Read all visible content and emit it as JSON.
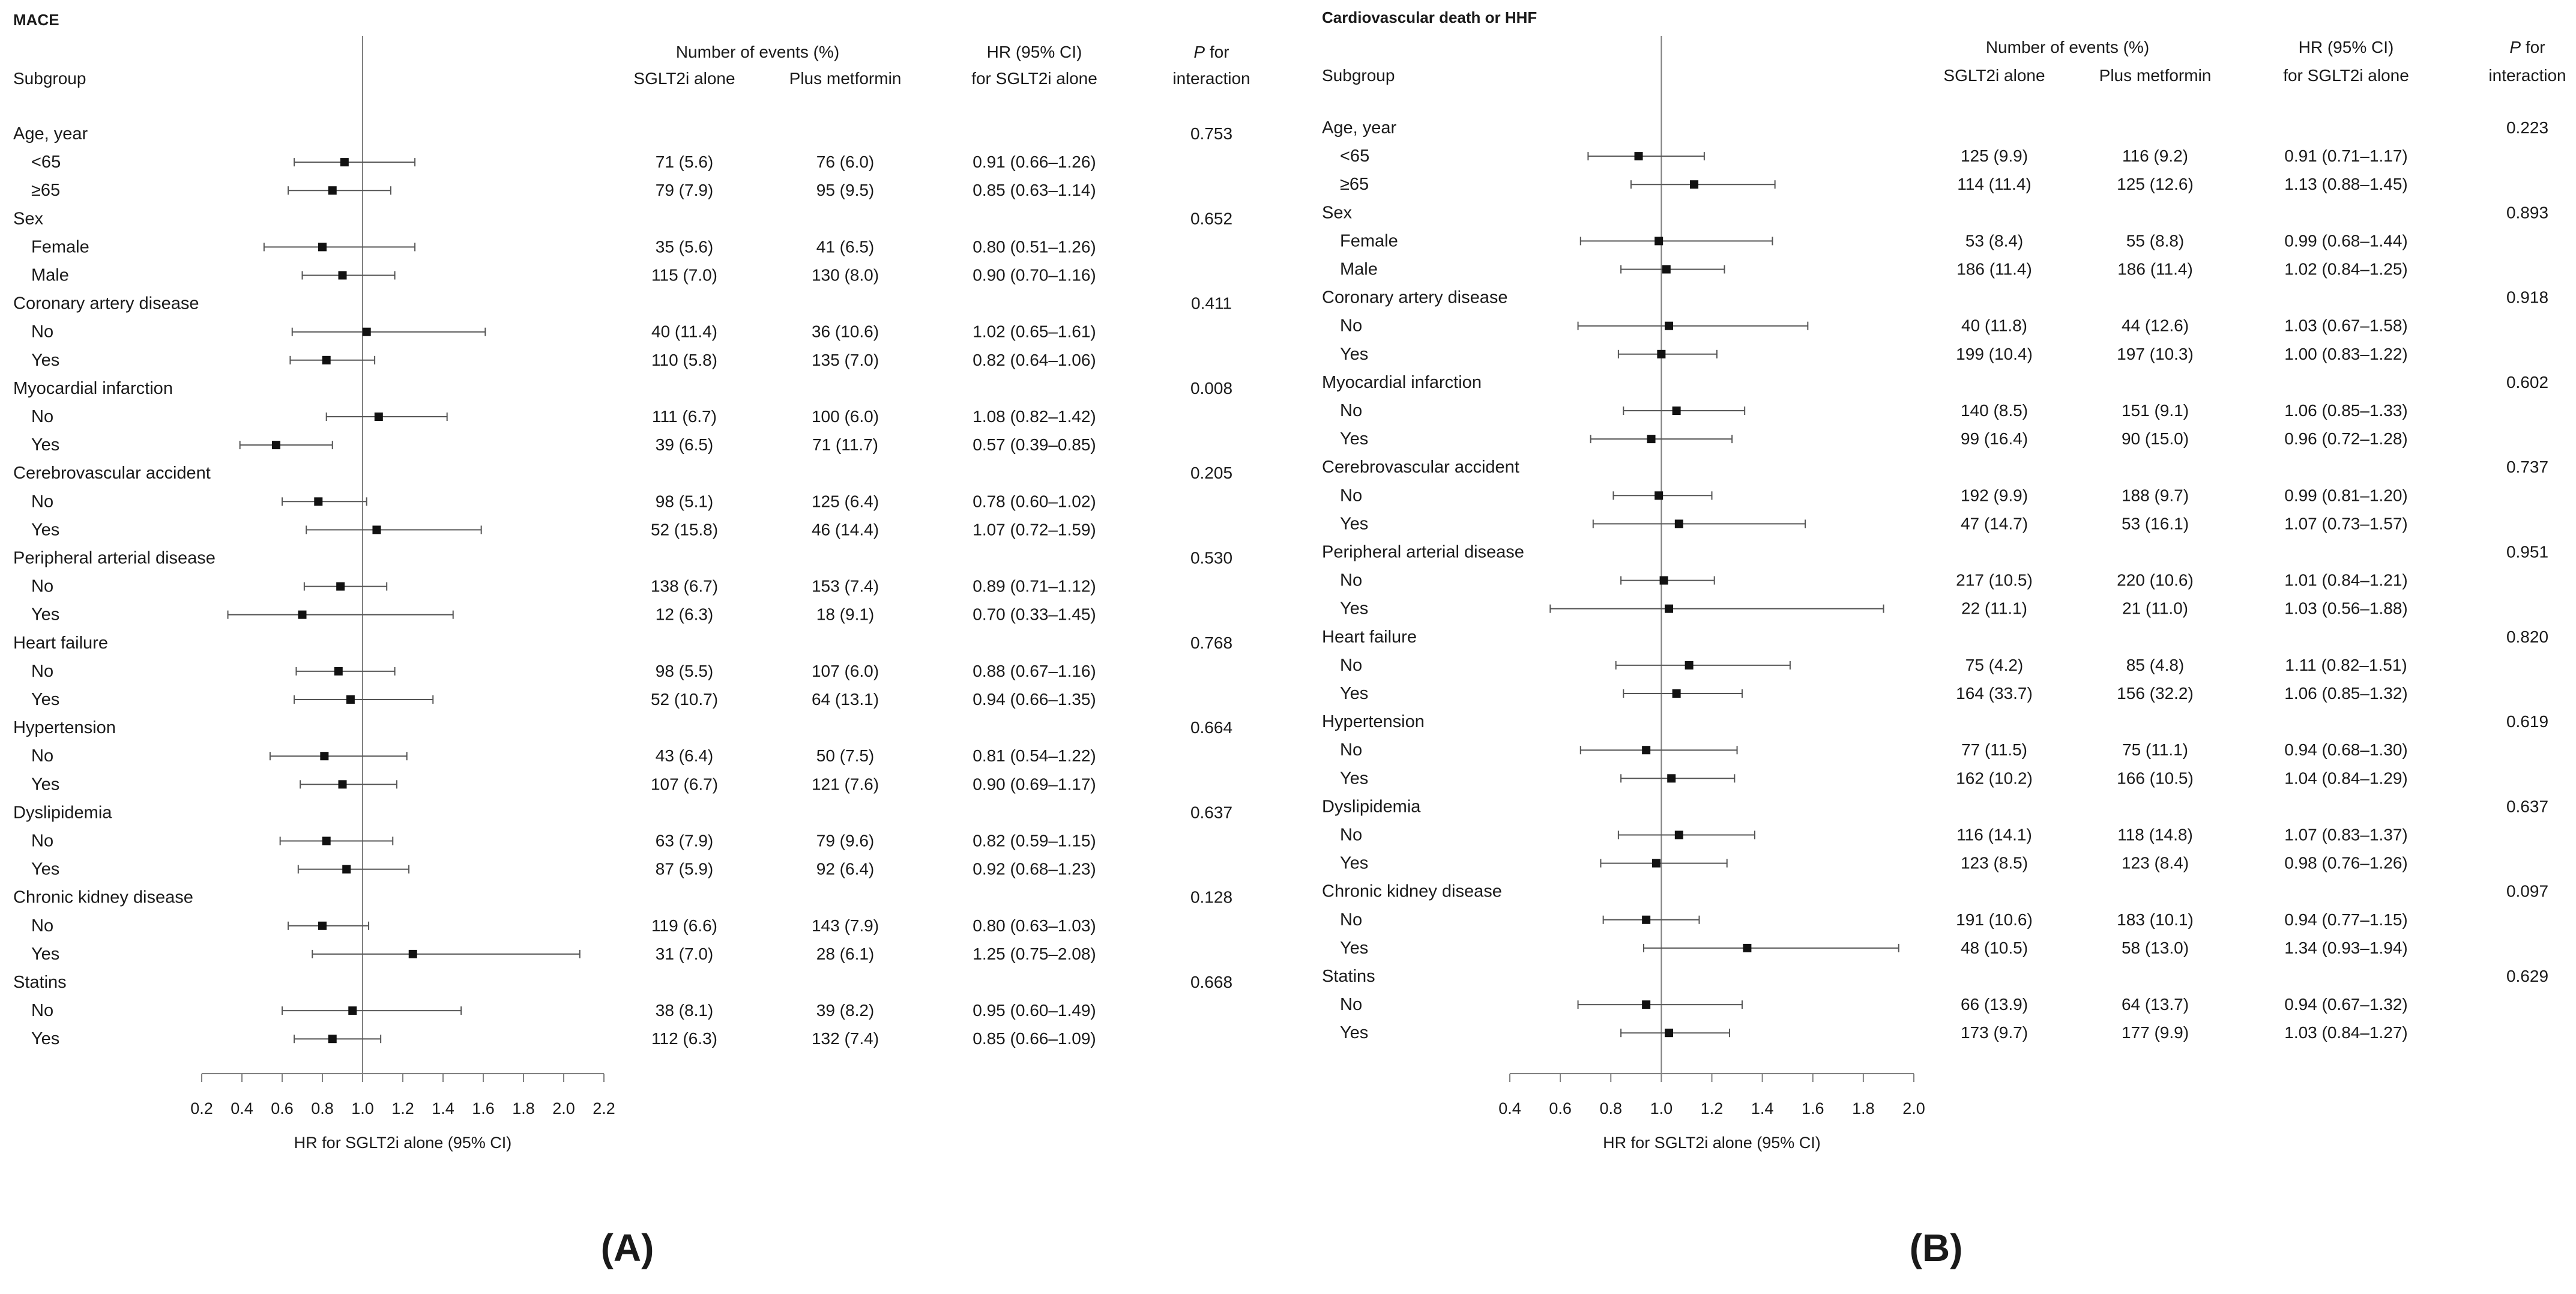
{
  "chart_data": [
    {
      "type": "forest",
      "panel_label": "(A)",
      "title": "MACE",
      "header": {
        "subgroup": "Subgroup",
        "events_group": "Number of events (%)",
        "events_col1": "SGLT2i alone",
        "events_col2": "Plus metformin",
        "hr_line1": "HR (95% CI)",
        "hr_line2": "for SGLT2i alone",
        "p_line1_italic": "P",
        "p_line1_rest": " for",
        "p_line2": "interaction"
      },
      "xlabel": "HR for SGLT2i alone (95% CI)",
      "xlim": [
        0.2,
        2.2
      ],
      "xticks": [
        "0.2",
        "0.4",
        "0.6",
        "0.8",
        "1.0",
        "1.2",
        "1.4",
        "1.6",
        "1.8",
        "2.0",
        "2.2"
      ],
      "reference_line": 1.0,
      "rows": [
        {
          "label": "Age, year",
          "p": "0.753"
        },
        {
          "label": "<65",
          "sglt2": "71 (5.6)",
          "plus": "76 (6.0)",
          "hr_text": "0.91 (0.66–1.26)",
          "hr": 0.91,
          "lo": 0.66,
          "hi": 1.26
        },
        {
          "label": "≥65",
          "sglt2": "79 (7.9)",
          "plus": "95 (9.5)",
          "hr_text": "0.85 (0.63–1.14)",
          "hr": 0.85,
          "lo": 0.63,
          "hi": 1.14
        },
        {
          "label": "Sex",
          "p": "0.652"
        },
        {
          "label": "Female",
          "sglt2": "35 (5.6)",
          "plus": "41 (6.5)",
          "hr_text": "0.80 (0.51–1.26)",
          "hr": 0.8,
          "lo": 0.51,
          "hi": 1.26
        },
        {
          "label": "Male",
          "sglt2": "115 (7.0)",
          "plus": "130 (8.0)",
          "hr_text": "0.90 (0.70–1.16)",
          "hr": 0.9,
          "lo": 0.7,
          "hi": 1.16
        },
        {
          "label": "Coronary artery disease",
          "p": "0.411"
        },
        {
          "label": "No",
          "sglt2": "40 (11.4)",
          "plus": "36 (10.6)",
          "hr_text": "1.02 (0.65–1.61)",
          "hr": 1.02,
          "lo": 0.65,
          "hi": 1.61
        },
        {
          "label": "Yes",
          "sglt2": "110 (5.8)",
          "plus": "135 (7.0)",
          "hr_text": "0.82 (0.64–1.06)",
          "hr": 0.82,
          "lo": 0.64,
          "hi": 1.06
        },
        {
          "label": "Myocardial infarction",
          "p": "0.008"
        },
        {
          "label": "No",
          "sglt2": "111 (6.7)",
          "plus": "100 (6.0)",
          "hr_text": "1.08 (0.82–1.42)",
          "hr": 1.08,
          "lo": 0.82,
          "hi": 1.42
        },
        {
          "label": "Yes",
          "sglt2": "39 (6.5)",
          "plus": "71 (11.7)",
          "hr_text": "0.57 (0.39–0.85)",
          "hr": 0.57,
          "lo": 0.39,
          "hi": 0.85
        },
        {
          "label": "Cerebrovascular accident",
          "p": "0.205"
        },
        {
          "label": "No",
          "sglt2": "98 (5.1)",
          "plus": "125 (6.4)",
          "hr_text": "0.78 (0.60–1.02)",
          "hr": 0.78,
          "lo": 0.6,
          "hi": 1.02
        },
        {
          "label": "Yes",
          "sglt2": "52 (15.8)",
          "plus": "46 (14.4)",
          "hr_text": "1.07 (0.72–1.59)",
          "hr": 1.07,
          "lo": 0.72,
          "hi": 1.59
        },
        {
          "label": "Peripheral arterial disease",
          "p": "0.530"
        },
        {
          "label": "No",
          "sglt2": "138 (6.7)",
          "plus": "153 (7.4)",
          "hr_text": "0.89 (0.71–1.12)",
          "hr": 0.89,
          "lo": 0.71,
          "hi": 1.12
        },
        {
          "label": "Yes",
          "sglt2": "12 (6.3)",
          "plus": "18 (9.1)",
          "hr_text": "0.70 (0.33–1.45)",
          "hr": 0.7,
          "lo": 0.33,
          "hi": 1.45
        },
        {
          "label": "Heart failure",
          "p": "0.768"
        },
        {
          "label": "No",
          "sglt2": "98 (5.5)",
          "plus": "107 (6.0)",
          "hr_text": "0.88 (0.67–1.16)",
          "hr": 0.88,
          "lo": 0.67,
          "hi": 1.16
        },
        {
          "label": "Yes",
          "sglt2": "52 (10.7)",
          "plus": "64 (13.1)",
          "hr_text": "0.94 (0.66–1.35)",
          "hr": 0.94,
          "lo": 0.66,
          "hi": 1.35
        },
        {
          "label": "Hypertension",
          "p": "0.664"
        },
        {
          "label": "No",
          "sglt2": "43 (6.4)",
          "plus": "50 (7.5)",
          "hr_text": "0.81 (0.54–1.22)",
          "hr": 0.81,
          "lo": 0.54,
          "hi": 1.22
        },
        {
          "label": "Yes",
          "sglt2": "107 (6.7)",
          "plus": "121 (7.6)",
          "hr_text": "0.90 (0.69–1.17)",
          "hr": 0.9,
          "lo": 0.69,
          "hi": 1.17
        },
        {
          "label": "Dyslipidemia",
          "p": "0.637"
        },
        {
          "label": "No",
          "sglt2": "63 (7.9)",
          "plus": "79 (9.6)",
          "hr_text": "0.82 (0.59–1.15)",
          "hr": 0.82,
          "lo": 0.59,
          "hi": 1.15
        },
        {
          "label": "Yes",
          "sglt2": "87 (5.9)",
          "plus": "92 (6.4)",
          "hr_text": "0.92 (0.68–1.23)",
          "hr": 0.92,
          "lo": 0.68,
          "hi": 1.23
        },
        {
          "label": "Chronic kidney disease",
          "p": "0.128"
        },
        {
          "label": "No",
          "sglt2": "119 (6.6)",
          "plus": "143 (7.9)",
          "hr_text": "0.80 (0.63–1.03)",
          "hr": 0.8,
          "lo": 0.63,
          "hi": 1.03
        },
        {
          "label": "Yes",
          "sglt2": "31 (7.0)",
          "plus": "28 (6.1)",
          "hr_text": "1.25 (0.75–2.08)",
          "hr": 1.25,
          "lo": 0.75,
          "hi": 2.08
        },
        {
          "label": "Statins",
          "p": "0.668"
        },
        {
          "label": "No",
          "sglt2": "38 (8.1)",
          "plus": "39 (8.2)",
          "hr_text": "0.95 (0.60–1.49)",
          "hr": 0.95,
          "lo": 0.6,
          "hi": 1.49
        },
        {
          "label": "Yes",
          "sglt2": "112 (6.3)",
          "plus": "132 (7.4)",
          "hr_text": "0.85 (0.66–1.09)",
          "hr": 0.85,
          "lo": 0.66,
          "hi": 1.09
        }
      ]
    },
    {
      "type": "forest",
      "panel_label": "(B)",
      "title": "Cardiovascular death or HHF",
      "header": {
        "subgroup": "Subgroup",
        "events_group": "Number of events (%)",
        "events_col1": "SGLT2i alone",
        "events_col2": "Plus metformin",
        "hr_line1": "HR (95% CI)",
        "hr_line2": "for SGLT2i alone",
        "p_line1_italic": "P",
        "p_line1_rest": " for",
        "p_line2": "interaction"
      },
      "xlabel": "HR for SGLT2i alone (95% CI)",
      "xlim": [
        0.4,
        2.0
      ],
      "xticks": [
        "0.4",
        "0.6",
        "0.8",
        "1.0",
        "1.2",
        "1.4",
        "1.6",
        "1.8",
        "2.0"
      ],
      "reference_line": 1.0,
      "rows": [
        {
          "label": "Age, year",
          "p": "0.223"
        },
        {
          "label": "<65",
          "sglt2": "125 (9.9)",
          "plus": "116 (9.2)",
          "hr_text": "0.91 (0.71–1.17)",
          "hr": 0.91,
          "lo": 0.71,
          "hi": 1.17
        },
        {
          "label": "≥65",
          "sglt2": "114 (11.4)",
          "plus": "125 (12.6)",
          "hr_text": "1.13 (0.88–1.45)",
          "hr": 1.13,
          "lo": 0.88,
          "hi": 1.45
        },
        {
          "label": "Sex",
          "p": "0.893"
        },
        {
          "label": "Female",
          "sglt2": "53 (8.4)",
          "plus": "55 (8.8)",
          "hr_text": "0.99 (0.68–1.44)",
          "hr": 0.99,
          "lo": 0.68,
          "hi": 1.44
        },
        {
          "label": "Male",
          "sglt2": "186 (11.4)",
          "plus": "186 (11.4)",
          "hr_text": "1.02 (0.84–1.25)",
          "hr": 1.02,
          "lo": 0.84,
          "hi": 1.25
        },
        {
          "label": "Coronary artery disease",
          "p": "0.918"
        },
        {
          "label": "No",
          "sglt2": "40 (11.8)",
          "plus": "44 (12.6)",
          "hr_text": "1.03 (0.67–1.58)",
          "hr": 1.03,
          "lo": 0.67,
          "hi": 1.58
        },
        {
          "label": "Yes",
          "sglt2": "199 (10.4)",
          "plus": "197 (10.3)",
          "hr_text": "1.00 (0.83–1.22)",
          "hr": 1.0,
          "lo": 0.83,
          "hi": 1.22
        },
        {
          "label": "Myocardial infarction",
          "p": "0.602"
        },
        {
          "label": "No",
          "sglt2": "140 (8.5)",
          "plus": "151 (9.1)",
          "hr_text": "1.06 (0.85–1.33)",
          "hr": 1.06,
          "lo": 0.85,
          "hi": 1.33
        },
        {
          "label": "Yes",
          "sglt2": "99 (16.4)",
          "plus": "90 (15.0)",
          "hr_text": "0.96 (0.72–1.28)",
          "hr": 0.96,
          "lo": 0.72,
          "hi": 1.28
        },
        {
          "label": "Cerebrovascular accident",
          "p": "0.737"
        },
        {
          "label": "No",
          "sglt2": "192 (9.9)",
          "plus": "188 (9.7)",
          "hr_text": "0.99 (0.81–1.20)",
          "hr": 0.99,
          "lo": 0.81,
          "hi": 1.2
        },
        {
          "label": "Yes",
          "sglt2": "47 (14.7)",
          "plus": "53 (16.1)",
          "hr_text": "1.07 (0.73–1.57)",
          "hr": 1.07,
          "lo": 0.73,
          "hi": 1.57
        },
        {
          "label": "Peripheral arterial disease",
          "p": "0.951"
        },
        {
          "label": "No",
          "sglt2": "217 (10.5)",
          "plus": "220 (10.6)",
          "hr_text": "1.01 (0.84–1.21)",
          "hr": 1.01,
          "lo": 0.84,
          "hi": 1.21
        },
        {
          "label": "Yes",
          "sglt2": "22 (11.1)",
          "plus": "21 (11.0)",
          "hr_text": "1.03 (0.56–1.88)",
          "hr": 1.03,
          "lo": 0.56,
          "hi": 1.88
        },
        {
          "label": "Heart failure",
          "p": "0.820"
        },
        {
          "label": "No",
          "sglt2": "75 (4.2)",
          "plus": "85 (4.8)",
          "hr_text": "1.11 (0.82–1.51)",
          "hr": 1.11,
          "lo": 0.82,
          "hi": 1.51
        },
        {
          "label": "Yes",
          "sglt2": "164 (33.7)",
          "plus": "156 (32.2)",
          "hr_text": "1.06 (0.85–1.32)",
          "hr": 1.06,
          "lo": 0.85,
          "hi": 1.32
        },
        {
          "label": "Hypertension",
          "p": "0.619"
        },
        {
          "label": "No",
          "sglt2": "77 (11.5)",
          "plus": "75 (11.1)",
          "hr_text": "0.94 (0.68–1.30)",
          "hr": 0.94,
          "lo": 0.68,
          "hi": 1.3
        },
        {
          "label": "Yes",
          "sglt2": "162 (10.2)",
          "plus": "166 (10.5)",
          "hr_text": "1.04 (0.84–1.29)",
          "hr": 1.04,
          "lo": 0.84,
          "hi": 1.29
        },
        {
          "label": "Dyslipidemia",
          "p": "0.637"
        },
        {
          "label": "No",
          "sglt2": "116 (14.1)",
          "plus": "118 (14.8)",
          "hr_text": "1.07 (0.83–1.37)",
          "hr": 1.07,
          "lo": 0.83,
          "hi": 1.37
        },
        {
          "label": "Yes",
          "sglt2": "123 (8.5)",
          "plus": "123 (8.4)",
          "hr_text": "0.98 (0.76–1.26)",
          "hr": 0.98,
          "lo": 0.76,
          "hi": 1.26
        },
        {
          "label": "Chronic kidney disease",
          "p": "0.097"
        },
        {
          "label": "No",
          "sglt2": "191 (10.6)",
          "plus": "183 (10.1)",
          "hr_text": "0.94 (0.77–1.15)",
          "hr": 0.94,
          "lo": 0.77,
          "hi": 1.15
        },
        {
          "label": "Yes",
          "sglt2": "48 (10.5)",
          "plus": "58 (13.0)",
          "hr_text": "1.34 (0.93–1.94)",
          "hr": 1.34,
          "lo": 0.93,
          "hi": 1.94
        },
        {
          "label": "Statins",
          "p": "0.629"
        },
        {
          "label": "No",
          "sglt2": "66 (13.9)",
          "plus": "64 (13.7)",
          "hr_text": "0.94 (0.67–1.32)",
          "hr": 0.94,
          "lo": 0.67,
          "hi": 1.32
        },
        {
          "label": "Yes",
          "sglt2": "173 (9.7)",
          "plus": "177 (9.9)",
          "hr_text": "1.03 (0.84–1.27)",
          "hr": 1.03,
          "lo": 0.84,
          "hi": 1.27
        }
      ]
    }
  ]
}
